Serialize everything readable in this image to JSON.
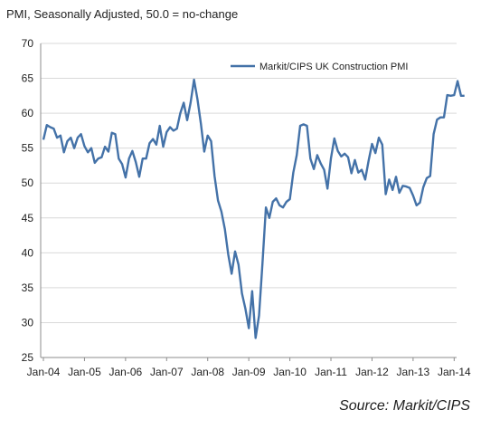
{
  "chart_data": {
    "type": "line",
    "title": "PMI, Seasonally Adjusted, 50.0 = no-change",
    "source": "Source: Markit/CIPS",
    "ylim": [
      25,
      70
    ],
    "y_ticks": [
      70,
      65,
      60,
      55,
      50,
      45,
      40,
      35,
      30,
      25
    ],
    "x_ticks": [
      "Jan-04",
      "Jan-05",
      "Jan-06",
      "Jan-07",
      "Jan-08",
      "Jan-09",
      "Jan-10",
      "Jan-11",
      "Jan-12",
      "Jan-13",
      "Jan-14"
    ],
    "grid": "horizontal",
    "legend_position": "top-right",
    "series_color": "#4472a8",
    "series": [
      {
        "name": "Markit/CIPS UK Construction PMI",
        "start": "2004-01",
        "frequency": "monthly",
        "values": [
          56.2,
          58.3,
          58.0,
          57.8,
          56.5,
          56.8,
          54.4,
          56.0,
          56.5,
          55.0,
          56.5,
          57.0,
          55.3,
          54.4,
          55.0,
          52.9,
          53.5,
          53.7,
          55.2,
          54.5,
          57.2,
          57.0,
          53.5,
          52.7,
          50.8,
          53.5,
          54.6,
          53.0,
          50.9,
          53.5,
          53.5,
          55.7,
          56.3,
          55.5,
          58.2,
          55.2,
          57.3,
          58.0,
          57.5,
          57.8,
          60.0,
          61.5,
          59.0,
          61.5,
          64.8,
          62.0,
          58.5,
          54.5,
          56.8,
          56.0,
          51.0,
          47.5,
          45.9,
          43.4,
          39.8,
          37.0,
          40.2,
          38.3,
          34.2,
          32.0,
          29.2,
          34.5,
          27.8,
          31.0,
          38.5,
          46.5,
          45.0,
          47.3,
          47.8,
          46.8,
          46.5,
          47.3,
          47.7,
          51.5,
          54.0,
          58.2,
          58.4,
          58.2,
          53.5,
          52.0,
          54.0,
          52.8,
          51.9,
          49.2,
          53.5,
          56.4,
          54.6,
          53.8,
          54.2,
          53.7,
          51.4,
          53.3,
          51.5,
          51.9,
          50.5,
          53.2,
          55.6,
          54.3,
          56.5,
          55.5,
          48.4,
          50.5,
          49.0,
          50.9,
          48.6,
          49.6,
          49.5,
          49.3,
          48.2,
          46.8,
          47.2,
          49.4,
          50.7,
          51.0,
          57.0,
          59.1,
          59.4,
          59.4,
          62.6,
          62.5,
          62.6,
          64.6,
          62.5,
          62.5
        ]
      }
    ]
  }
}
